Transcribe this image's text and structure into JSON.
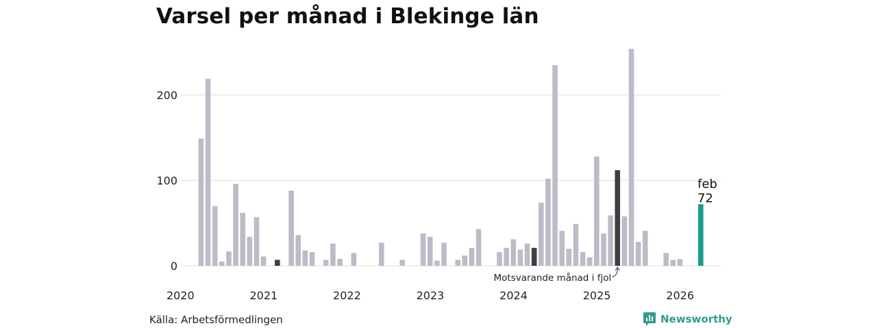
{
  "colors": {
    "bar": "#bebbc8",
    "highlight": "#3f3f41",
    "current": "#1a9b8b",
    "grid": "#dddddd",
    "brand": "#2f9b8f"
  },
  "source": "Källa: Arbetsförmedlingen",
  "brand_name": "Newsworthy",
  "brand_icon": "newsworthy-logo-icon",
  "chart_data": {
    "type": "bar",
    "title": "Varsel per månad i Blekinge län",
    "xlabel": "",
    "ylabel": "",
    "ylim": [
      0,
      260
    ],
    "y_ticks": [
      0,
      100,
      200
    ],
    "x_tick_labels": [
      "2020",
      "2021",
      "2022",
      "2023",
      "2024",
      "2025",
      "2026"
    ],
    "grid": true,
    "annotation": "Motsvarande månad i fjol",
    "latest_label": {
      "month": "feb",
      "value": "72"
    },
    "x": [
      "2020-01",
      "2020-02",
      "2020-03",
      "2020-04",
      "2020-05",
      "2020-06",
      "2020-07",
      "2020-08",
      "2020-09",
      "2020-10",
      "2020-11",
      "2020-12",
      "2021-01",
      "2021-02",
      "2021-03",
      "2021-04",
      "2021-05",
      "2021-06",
      "2021-07",
      "2021-08",
      "2021-09",
      "2021-10",
      "2021-11",
      "2021-12",
      "2022-01",
      "2022-02",
      "2022-03",
      "2022-04",
      "2022-05",
      "2022-06",
      "2022-07",
      "2022-08",
      "2022-09",
      "2022-10",
      "2022-11",
      "2022-12",
      "2023-01",
      "2023-02",
      "2023-03",
      "2023-04",
      "2023-05",
      "2023-06",
      "2023-07",
      "2023-08",
      "2023-09",
      "2023-10",
      "2023-11",
      "2023-12",
      "2024-01",
      "2024-02",
      "2024-03",
      "2024-04",
      "2024-05",
      "2024-06",
      "2024-07",
      "2024-08",
      "2024-09",
      "2024-10",
      "2024-11",
      "2024-12",
      "2025-01",
      "2025-02",
      "2025-03",
      "2025-04",
      "2025-05",
      "2025-06",
      "2025-07",
      "2025-08",
      "2025-09",
      "2025-10",
      "2025-11",
      "2025-12",
      "2026-01",
      "2026-02"
    ],
    "values": [
      0,
      149,
      219,
      70,
      5,
      17,
      96,
      62,
      34,
      57,
      11,
      0,
      7,
      0,
      88,
      36,
      18,
      16,
      0,
      7,
      26,
      8,
      0,
      15,
      0,
      0,
      0,
      27,
      0,
      0,
      7,
      0,
      0,
      38,
      34,
      6,
      27,
      0,
      7,
      12,
      21,
      43,
      0,
      0,
      16,
      21,
      31,
      19,
      26,
      21,
      74,
      102,
      235,
      41,
      20,
      49,
      16,
      10,
      128,
      38,
      59,
      112,
      58,
      254,
      28,
      41,
      0,
      0,
      15,
      7,
      8,
      0,
      0,
      72
    ],
    "highlight": [
      "2021-01",
      "2024-02",
      "2025-02"
    ],
    "current": "2026-02"
  }
}
